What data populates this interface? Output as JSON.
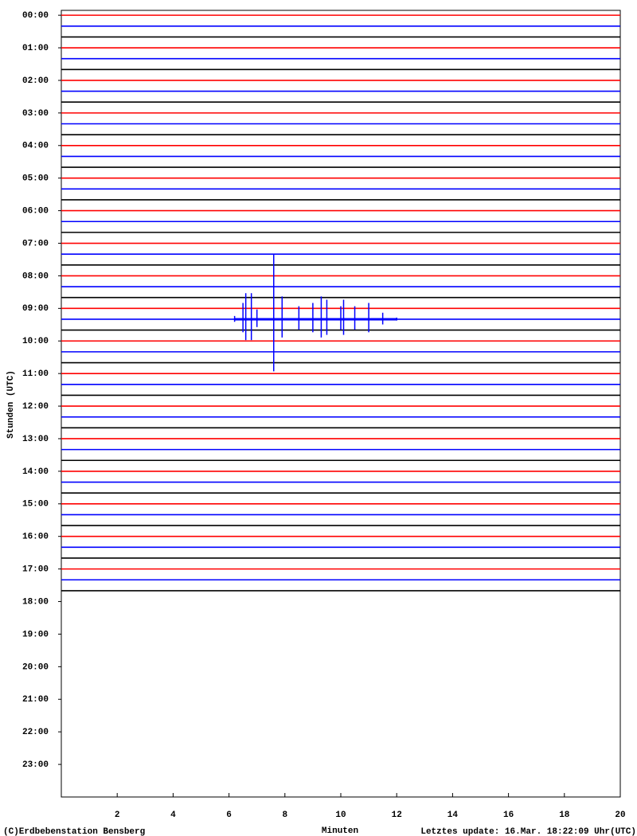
{
  "chart_data": {
    "type": "helicorder",
    "xlabel": "Minuten",
    "ylabel": "Stunden (UTC)",
    "xlim": [
      0,
      20
    ],
    "xticks": [
      2,
      4,
      6,
      8,
      10,
      12,
      14,
      16,
      18,
      20
    ],
    "ylim": [
      -0.15,
      24
    ],
    "yticks": [
      {
        "value": 0,
        "label": "00:00"
      },
      {
        "value": 1,
        "label": "01:00"
      },
      {
        "value": 2,
        "label": "02:00"
      },
      {
        "value": 3,
        "label": "03:00"
      },
      {
        "value": 4,
        "label": "04:00"
      },
      {
        "value": 5,
        "label": "05:00"
      },
      {
        "value": 6,
        "label": "06:00"
      },
      {
        "value": 7,
        "label": "07:00"
      },
      {
        "value": 8,
        "label": "08:00"
      },
      {
        "value": 9,
        "label": "09:00"
      },
      {
        "value": 10,
        "label": "10:00"
      },
      {
        "value": 11,
        "label": "11:00"
      },
      {
        "value": 12,
        "label": "12:00"
      },
      {
        "value": 13,
        "label": "13:00"
      },
      {
        "value": 14,
        "label": "14:00"
      },
      {
        "value": 15,
        "label": "15:00"
      },
      {
        "value": 16,
        "label": "16:00"
      },
      {
        "value": 17,
        "label": "17:00"
      },
      {
        "value": 18,
        "label": "18:00"
      },
      {
        "value": 19,
        "label": "19:00"
      },
      {
        "value": 20,
        "label": "20:00"
      },
      {
        "value": 21,
        "label": "21:00"
      },
      {
        "value": 22,
        "label": "22:00"
      },
      {
        "value": 23,
        "label": "23:00"
      }
    ],
    "trace_colors": [
      "#ff0000",
      "#0000ff",
      "#000000"
    ],
    "data_end": 18,
    "event": {
      "hour": 9.333,
      "color": "#0000ff",
      "x": [
        6.2,
        6.5,
        6.6,
        6.8,
        7.0,
        7.6,
        7.9,
        8.5,
        9.0,
        9.3,
        9.5,
        10.0,
        10.1,
        10.5,
        11.0,
        11.5,
        12.0
      ],
      "values": [
        0.1,
        0.5,
        0.8,
        0.8,
        0.3,
        2.0,
        0.7,
        0.4,
        0.5,
        0.7,
        0.6,
        0.4,
        0.6,
        0.4,
        0.5,
        0.2,
        0.05
      ]
    },
    "credit": "(C)Erdbebenstation Bensberg",
    "update": "Letztes update: 16.Mar. 18:22:09 Uhr(UTC)"
  }
}
